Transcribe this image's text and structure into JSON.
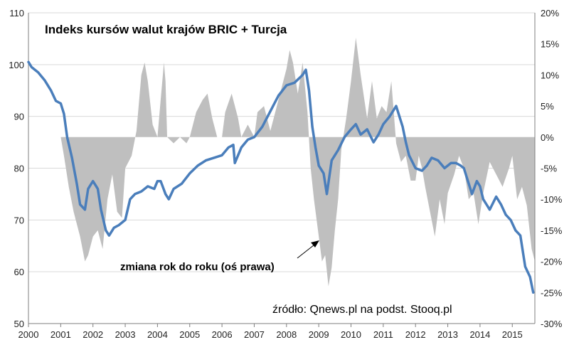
{
  "chart_data": {
    "type": "line",
    "title": "Indeks kursów walut krajów BRIC + Turcja",
    "annotation": "zmiana rok do roku (oś prawa)",
    "source": "źródło: Qnews.pl na podst. Stooq.pl",
    "xlabel": "",
    "ylabel": "",
    "xlim": [
      2000,
      2015.7
    ],
    "ylim": [
      50,
      110
    ],
    "y2lim": [
      -30,
      20
    ],
    "grid": true,
    "legend": "none",
    "x_ticks": [
      "2000",
      "2001",
      "2002",
      "2003",
      "2004",
      "2005",
      "2006",
      "2007",
      "2008",
      "2009",
      "2010",
      "2011",
      "2012",
      "2013",
      "2014",
      "2015"
    ],
    "y_ticks": [
      "50",
      "60",
      "70",
      "80",
      "90",
      "100",
      "110"
    ],
    "y2_ticks": [
      "-30%",
      "-25%",
      "-20%",
      "-15%",
      "-10%",
      "-5%",
      "0%",
      "5%",
      "10%",
      "15%",
      "20%"
    ],
    "colors": {
      "index_line": "#4a7ebb",
      "yoy_area": "#bfbfbf",
      "grid": "#d9d9d9",
      "axis": "#7f7f7f"
    },
    "series": [
      {
        "role": "index",
        "axis": "left",
        "x": [
          2000.0,
          2000.1,
          2000.3,
          2000.5,
          2000.7,
          2000.85,
          2001.0,
          2001.1,
          2001.2,
          2001.35,
          2001.5,
          2001.6,
          2001.75,
          2001.85,
          2002.0,
          2002.15,
          2002.25,
          2002.4,
          2002.5,
          2002.65,
          2002.8,
          2002.9,
          2003.0,
          2003.15,
          2003.3,
          2003.5,
          2003.7,
          2003.9,
          2004.0,
          2004.1,
          2004.25,
          2004.35,
          2004.5,
          2004.75,
          2005.0,
          2005.25,
          2005.5,
          2005.75,
          2006.0,
          2006.2,
          2006.35,
          2006.4,
          2006.6,
          2006.8,
          2007.0,
          2007.25,
          2007.5,
          2007.75,
          2008.0,
          2008.25,
          2008.5,
          2008.6,
          2008.7,
          2008.8,
          2008.9,
          2009.0,
          2009.15,
          2009.25,
          2009.4,
          2009.6,
          2009.8,
          2010.0,
          2010.15,
          2010.3,
          2010.5,
          2010.7,
          2010.85,
          2011.0,
          2011.2,
          2011.4,
          2011.6,
          2011.7,
          2011.8,
          2012.0,
          2012.2,
          2012.35,
          2012.5,
          2012.7,
          2012.9,
          2013.1,
          2013.25,
          2013.4,
          2013.5,
          2013.6,
          2013.75,
          2013.9,
          2014.0,
          2014.1,
          2014.2,
          2014.3,
          2014.5,
          2014.65,
          2014.8,
          2014.95,
          2015.1,
          2015.25,
          2015.4,
          2015.55,
          2015.65
        ],
        "values": [
          100.5,
          99.5,
          98.5,
          97,
          95,
          93,
          92.5,
          90.5,
          86,
          82,
          77,
          73,
          72,
          76,
          77.5,
          76,
          72,
          68,
          67,
          68.5,
          69,
          69.5,
          70,
          74,
          75,
          75.5,
          76.5,
          76,
          77.5,
          77.5,
          75,
          74,
          76,
          77,
          79,
          80.5,
          81.5,
          82,
          82.5,
          84,
          84.5,
          81,
          84,
          85.5,
          86,
          88,
          91,
          94,
          96,
          96.5,
          98,
          99,
          95,
          88,
          84,
          80.5,
          79,
          75,
          81.5,
          83.5,
          86,
          87.5,
          88.5,
          86.5,
          87.5,
          85,
          86.5,
          88.5,
          90,
          92,
          88,
          85,
          82.5,
          80,
          79.5,
          80.5,
          82,
          81.5,
          80,
          81,
          81,
          80.5,
          80,
          78,
          75,
          77.5,
          76.5,
          74,
          73,
          72,
          74.5,
          73,
          71,
          70,
          68,
          67,
          61,
          59,
          56
        ]
      },
      {
        "role": "yoy_change",
        "axis": "right",
        "unit": "%",
        "x": [
          2000.0,
          2001.0,
          2001.1,
          2001.25,
          2001.4,
          2001.6,
          2001.75,
          2001.85,
          2002.0,
          2002.15,
          2002.3,
          2002.45,
          2002.6,
          2002.75,
          2002.9,
          2003.0,
          2003.2,
          2003.35,
          2003.5,
          2003.6,
          2003.7,
          2003.85,
          2004.0,
          2004.1,
          2004.2,
          2004.25,
          2004.3,
          2004.5,
          2004.7,
          2004.9,
          2005.0,
          2005.2,
          2005.4,
          2005.55,
          2005.7,
          2005.85,
          2006.0,
          2006.1,
          2006.3,
          2006.5,
          2006.6,
          2006.8,
          2007.0,
          2007.1,
          2007.3,
          2007.5,
          2007.6,
          2007.75,
          2007.9,
          2008.0,
          2008.1,
          2008.2,
          2008.35,
          2008.5,
          2008.65,
          2008.75,
          2008.85,
          2009.0,
          2009.1,
          2009.2,
          2009.3,
          2009.4,
          2009.5,
          2009.6,
          2009.7,
          2009.85,
          2010.0,
          2010.15,
          2010.3,
          2010.5,
          2010.65,
          2010.8,
          2010.95,
          2011.1,
          2011.25,
          2011.4,
          2011.55,
          2011.7,
          2011.85,
          2012.0,
          2012.1,
          2012.2,
          2012.3,
          2012.45,
          2012.6,
          2012.75,
          2012.9,
          2013.0,
          2013.2,
          2013.35,
          2013.5,
          2013.65,
          2013.8,
          2013.95,
          2014.1,
          2014.3,
          2014.5,
          2014.7,
          2014.9,
          2015.0,
          2015.15,
          2015.3,
          2015.45,
          2015.6,
          2015.7
        ],
        "values": [
          0,
          0,
          -3,
          -8,
          -12,
          -16,
          -20,
          -19,
          -16,
          -15,
          -18,
          -10,
          -6,
          -12,
          -13,
          -5,
          -3,
          1,
          10,
          12,
          9,
          2,
          0,
          6,
          12,
          9,
          0,
          -1,
          0,
          -1,
          0,
          4,
          6,
          7,
          3,
          0,
          0,
          4,
          7,
          3,
          0,
          2,
          0,
          4,
          5,
          1,
          3,
          6,
          9,
          11,
          14,
          12,
          7,
          12,
          4,
          -5,
          -10,
          -16,
          -20,
          -19,
          -24,
          -21,
          -15,
          -10,
          -2,
          3,
          9,
          16,
          10,
          3,
          9,
          3,
          5,
          4,
          9,
          -1,
          -4,
          -3,
          -7,
          -7,
          -3,
          -5,
          -8,
          -12,
          -16,
          -10,
          -14,
          -9,
          -6,
          -3,
          -5,
          -10,
          -9,
          -14,
          -9,
          -4,
          -6,
          -8,
          -5,
          -3,
          -10,
          -8,
          -11,
          -18,
          -20
        ]
      }
    ]
  }
}
